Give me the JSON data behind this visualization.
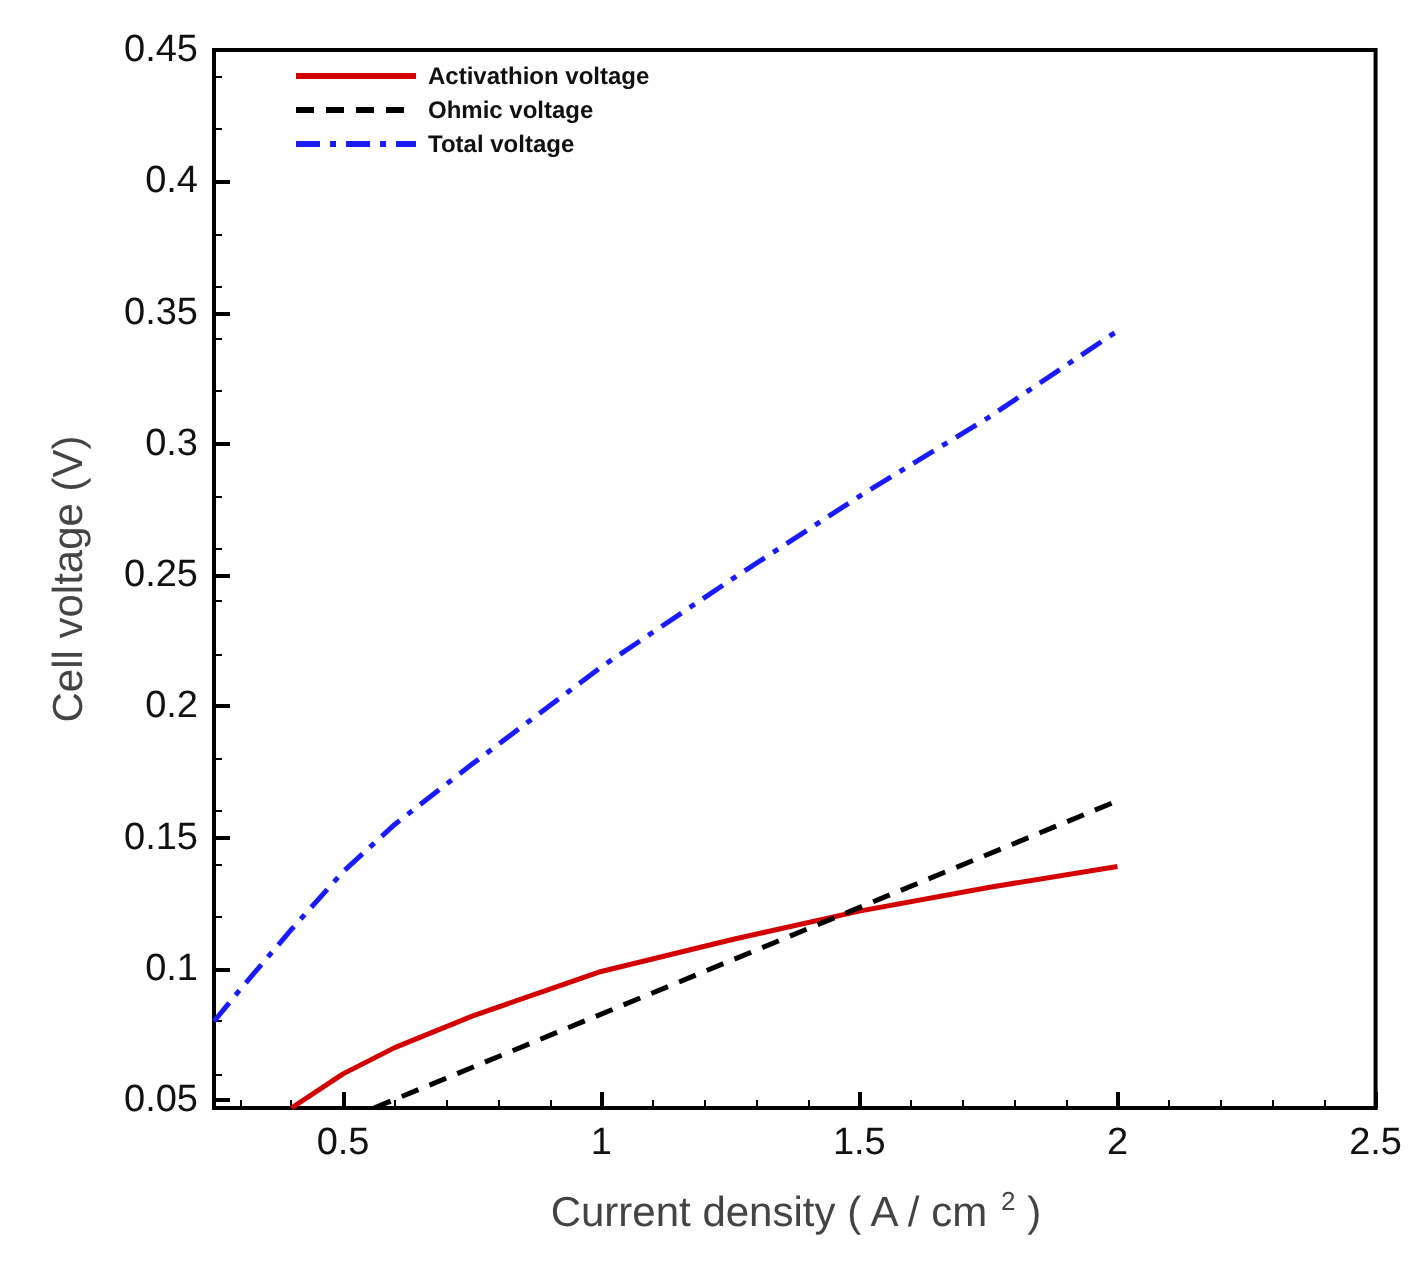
{
  "chart_data": {
    "type": "line",
    "xlabel": "Current density ( A / cm $^{2}$ )",
    "ylabel": "Cell voltage (V)",
    "xlim": [
      0.25,
      2.5
    ],
    "xticks": [
      0.5,
      1,
      1.5,
      2,
      2.5
    ],
    "ylim": [
      0.047,
      0.45
    ],
    "yticks": [
      0.05,
      0.1,
      0.15,
      0.2,
      0.25,
      0.3,
      0.35,
      0.4,
      0.45
    ],
    "grid": false,
    "legend": "top left",
    "marker": "none",
    "series": [
      {
        "name": "Activathion voltage",
        "color": "#d40000",
        "line_style": "solid",
        "x": [
          0.4,
          0.5,
          0.6,
          0.75,
          1,
          1.25,
          1.5,
          1.75,
          2
        ],
        "values": [
          0.047,
          0.06,
          0.07,
          0.082,
          0.099,
          0.111,
          0.122,
          0.131,
          0.139
        ]
      },
      {
        "name": "Ohmic voltage",
        "color": "#000000",
        "line_style": "dashed",
        "x": [
          0.56,
          2
        ],
        "values": [
          0.047,
          0.164
        ]
      },
      {
        "name": "Total voltage",
        "color": "#1a1aff",
        "line_style": "dashdot",
        "x": [
          0.25,
          0.3,
          0.4,
          0.5,
          0.6,
          0.75,
          1,
          1.25,
          1.5,
          1.75,
          2
        ],
        "values": [
          0.08,
          0.092,
          0.115,
          0.137,
          0.155,
          0.178,
          0.215,
          0.248,
          0.28,
          0.31,
          0.343
        ]
      }
    ]
  }
}
